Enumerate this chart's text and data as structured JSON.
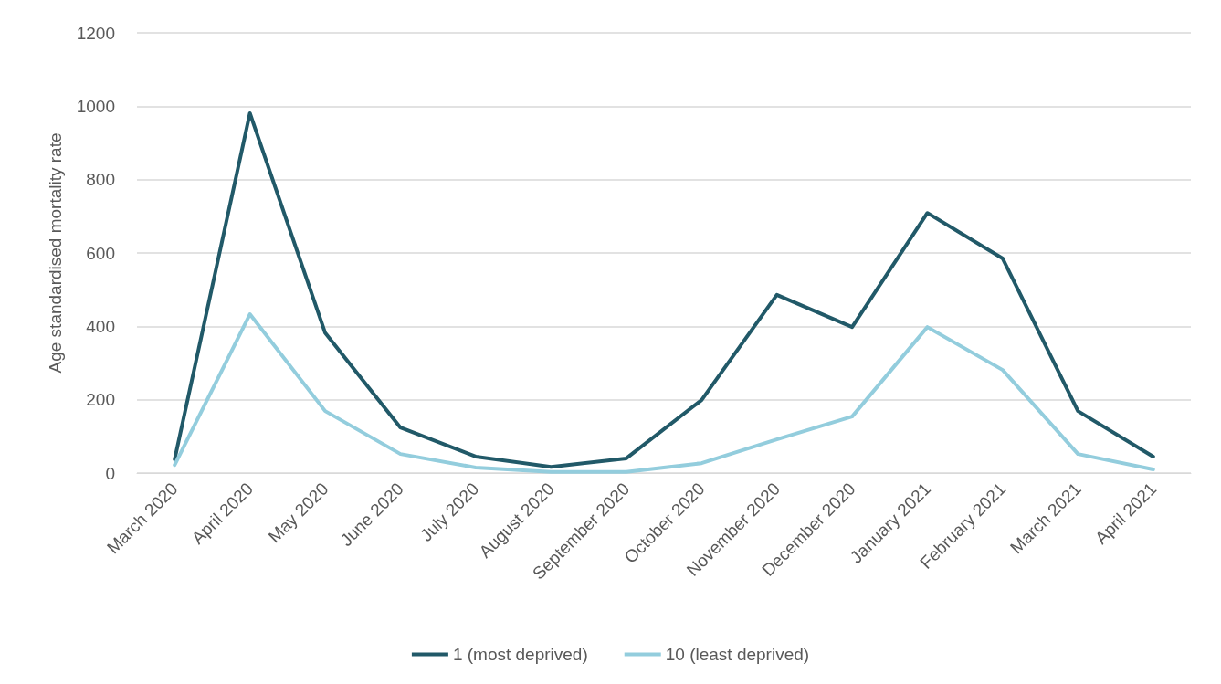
{
  "chart_data": {
    "type": "line",
    "ylabel": "Age standardised mortality rate",
    "categories": [
      "March 2020",
      "April 2020",
      "May 2020",
      "June 2020",
      "July 2020",
      "August 2020",
      "September 2020",
      "October 2020",
      "November 2020",
      "December 2020",
      "January 2021",
      "February 2021",
      "March 2021",
      "April 2021"
    ],
    "series": [
      {
        "name": "1 (most deprived)",
        "color": "#215968",
        "values": [
          37,
          981,
          382,
          124,
          45,
          17,
          40,
          199,
          486,
          398,
          709,
          585,
          169,
          45
        ]
      },
      {
        "name": "10 (least deprived)",
        "color": "#93cddd",
        "values": [
          22,
          433,
          169,
          52,
          15,
          3,
          3,
          27,
          92,
          154,
          398,
          281,
          52,
          10
        ]
      }
    ],
    "ylim": [
      0,
      1200
    ],
    "yticks": [
      0,
      200,
      400,
      600,
      800,
      1000,
      1200
    ],
    "grid": "y",
    "legend": "bottom",
    "marker": "none",
    "line_style": "solid"
  }
}
